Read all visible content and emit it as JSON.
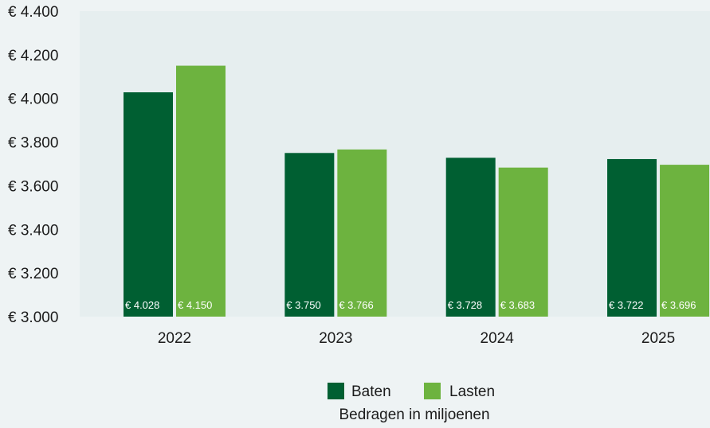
{
  "chart_data": {
    "type": "bar",
    "categories": [
      "2022",
      "2023",
      "2024",
      "2025"
    ],
    "series": [
      {
        "name": "Baten",
        "color": "#005f32",
        "values": [
          4028,
          3750,
          3728,
          3722
        ],
        "labels": [
          "€ 4.028",
          "€ 3.750",
          "€ 3.728",
          "€ 3.722"
        ]
      },
      {
        "name": "Lasten",
        "color": "#6db33f",
        "values": [
          4150,
          3766,
          3683,
          3696
        ],
        "labels": [
          "€ 4.150",
          "€ 3.766",
          "€ 3.683",
          "€ 3.696"
        ]
      }
    ],
    "ylim": [
      3000,
      4400
    ],
    "yticks": [
      3000,
      3200,
      3400,
      3600,
      3800,
      4000,
      4200,
      4400
    ],
    "ytick_labels": [
      "€ 3.000",
      "€ 3.200",
      "€ 3.400",
      "€ 3.600",
      "€ 3.800",
      "€ 4.000",
      "€ 4.200",
      "€ 4.400"
    ],
    "legend_position": "bottom-center",
    "note": "Bedragen in miljoenen",
    "grid": false,
    "plot_background": "#e6eeef"
  }
}
